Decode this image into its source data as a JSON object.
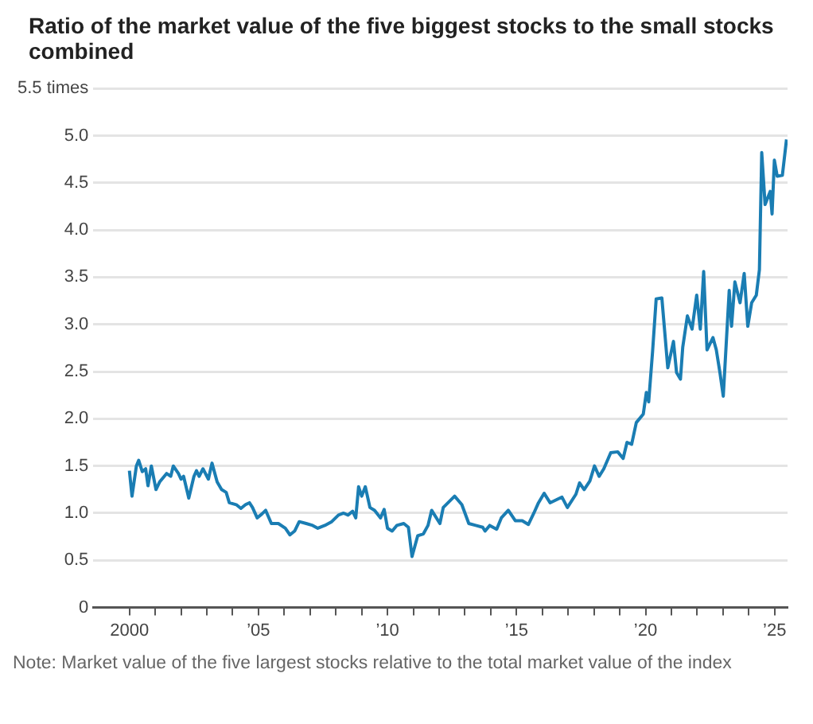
{
  "chart_data": {
    "type": "line",
    "title": "Ratio of the market value of the five biggest stocks to the small stocks combined",
    "annotations": [
      "Note: Market value of the five largest stocks relative to the total market value of the index"
    ],
    "series": [
      {
        "color": "#1a7db3",
        "x": [
          2000.0,
          2000.1,
          2000.27,
          2000.36,
          2000.5,
          2000.63,
          2000.72,
          2000.85,
          2001.03,
          2001.17,
          2001.44,
          2001.6,
          2001.7,
          2001.9,
          2002.0,
          2002.1,
          2002.3,
          2002.5,
          2002.6,
          2002.7,
          2002.85,
          2003.06,
          2003.2,
          2003.4,
          2003.57,
          2003.75,
          2003.87,
          2004.14,
          2004.32,
          2004.5,
          2004.65,
          2004.77,
          2004.95,
          2005.13,
          2005.28,
          2005.5,
          2005.77,
          2006.04,
          2006.22,
          2006.4,
          2006.58,
          2006.85,
          2007.1,
          2007.3,
          2007.57,
          2007.84,
          2008.1,
          2008.3,
          2008.47,
          2008.65,
          2008.77,
          2008.88,
          2009.0,
          2009.14,
          2009.32,
          2009.5,
          2009.73,
          2009.87,
          2010.0,
          2010.18,
          2010.36,
          2010.63,
          2010.81,
          2010.95,
          2011.17,
          2011.39,
          2011.57,
          2011.71,
          2012.03,
          2012.16,
          2012.6,
          2012.88,
          2013.15,
          2013.42,
          2013.69,
          2013.78,
          2013.96,
          2014.23,
          2014.41,
          2014.68,
          2014.95,
          2015.22,
          2015.46,
          2015.67,
          2015.85,
          2016.07,
          2016.3,
          2016.76,
          2016.97,
          2017.3,
          2017.44,
          2017.62,
          2017.84,
          2018.02,
          2018.2,
          2018.38,
          2018.65,
          2018.92,
          2019.13,
          2019.28,
          2019.46,
          2019.64,
          2019.91,
          2020.03,
          2020.12,
          2020.27,
          2020.41,
          2020.63,
          2020.86,
          2021.08,
          2021.2,
          2021.35,
          2021.44,
          2021.62,
          2021.8,
          2021.98,
          2022.12,
          2022.25,
          2022.38,
          2022.61,
          2022.74,
          2022.88,
          2023.01,
          2023.24,
          2023.33,
          2023.46,
          2023.66,
          2023.82,
          2023.96,
          2024.11,
          2024.29,
          2024.41,
          2024.5,
          2024.63,
          2024.83,
          2024.9,
          2024.99,
          2025.1,
          2025.3,
          2025.46
        ],
        "values": [
          1.45,
          1.18,
          1.5,
          1.56,
          1.44,
          1.47,
          1.29,
          1.5,
          1.25,
          1.33,
          1.42,
          1.39,
          1.5,
          1.42,
          1.36,
          1.39,
          1.16,
          1.39,
          1.45,
          1.39,
          1.47,
          1.36,
          1.53,
          1.33,
          1.25,
          1.22,
          1.11,
          1.09,
          1.05,
          1.09,
          1.11,
          1.06,
          0.95,
          0.99,
          1.03,
          0.89,
          0.89,
          0.84,
          0.77,
          0.81,
          0.91,
          0.89,
          0.87,
          0.84,
          0.87,
          0.91,
          0.98,
          1.0,
          0.98,
          1.02,
          0.95,
          1.28,
          1.18,
          1.28,
          1.06,
          1.03,
          0.95,
          1.04,
          0.84,
          0.81,
          0.87,
          0.89,
          0.85,
          0.54,
          0.76,
          0.78,
          0.87,
          1.03,
          0.89,
          1.06,
          1.18,
          1.09,
          0.89,
          0.87,
          0.85,
          0.81,
          0.87,
          0.83,
          0.95,
          1.03,
          0.92,
          0.92,
          0.88,
          1.0,
          1.11,
          1.21,
          1.11,
          1.17,
          1.06,
          1.2,
          1.32,
          1.25,
          1.34,
          1.5,
          1.39,
          1.47,
          1.64,
          1.65,
          1.58,
          1.75,
          1.73,
          1.96,
          2.05,
          2.28,
          2.18,
          2.71,
          3.27,
          3.28,
          2.54,
          2.82,
          2.49,
          2.42,
          2.76,
          3.09,
          2.95,
          3.31,
          2.95,
          3.56,
          2.73,
          2.86,
          2.73,
          2.49,
          2.24,
          3.36,
          2.98,
          3.45,
          3.23,
          3.54,
          2.98,
          3.23,
          3.31,
          3.58,
          4.82,
          4.27,
          4.41,
          4.17,
          4.74,
          4.57,
          4.58,
          4.96
        ]
      }
    ],
    "xlim": [
      1998.6,
      2025.5
    ],
    "xticks": [
      {
        "value": 2000,
        "label": "2000"
      },
      {
        "value": 2001,
        "label": null
      },
      {
        "value": 2002,
        "label": null
      },
      {
        "value": 2003,
        "label": null
      },
      {
        "value": 2004,
        "label": null
      },
      {
        "value": 2005,
        "label": "’05"
      },
      {
        "value": 2006,
        "label": null
      },
      {
        "value": 2007,
        "label": null
      },
      {
        "value": 2008,
        "label": null
      },
      {
        "value": 2009,
        "label": null
      },
      {
        "value": 2010,
        "label": "’10"
      },
      {
        "value": 2011,
        "label": null
      },
      {
        "value": 2012,
        "label": null
      },
      {
        "value": 2013,
        "label": null
      },
      {
        "value": 2014,
        "label": null
      },
      {
        "value": 2015,
        "label": "’15"
      },
      {
        "value": 2016,
        "label": null
      },
      {
        "value": 2017,
        "label": null
      },
      {
        "value": 2018,
        "label": null
      },
      {
        "value": 2019,
        "label": null
      },
      {
        "value": 2020,
        "label": "’20"
      },
      {
        "value": 2021,
        "label": null
      },
      {
        "value": 2022,
        "label": null
      },
      {
        "value": 2023,
        "label": null
      },
      {
        "value": 2024,
        "label": null
      },
      {
        "value": 2025,
        "label": "’25"
      }
    ],
    "ylim": [
      0,
      5.5
    ],
    "yticks": [
      0,
      {
        "value": 0.5,
        "label": "0.5"
      },
      {
        "value": 1,
        "label": "1.0"
      },
      {
        "value": 1.5,
        "label": "1.5"
      },
      {
        "value": 2,
        "label": "2.0"
      },
      {
        "value": 2.5,
        "label": "2.5"
      },
      {
        "value": 3,
        "label": "3.0"
      },
      {
        "value": 3.5,
        "label": "3.5"
      },
      {
        "value": 4,
        "label": "4.0"
      },
      {
        "value": 4.5,
        "label": "4.5"
      },
      {
        "value": 5,
        "label": "5.0"
      },
      {
        "value": 5.5,
        "label": "5.5 times"
      }
    ],
    "grid": "y",
    "legend": false,
    "marker": "none",
    "line_style": "solid"
  }
}
